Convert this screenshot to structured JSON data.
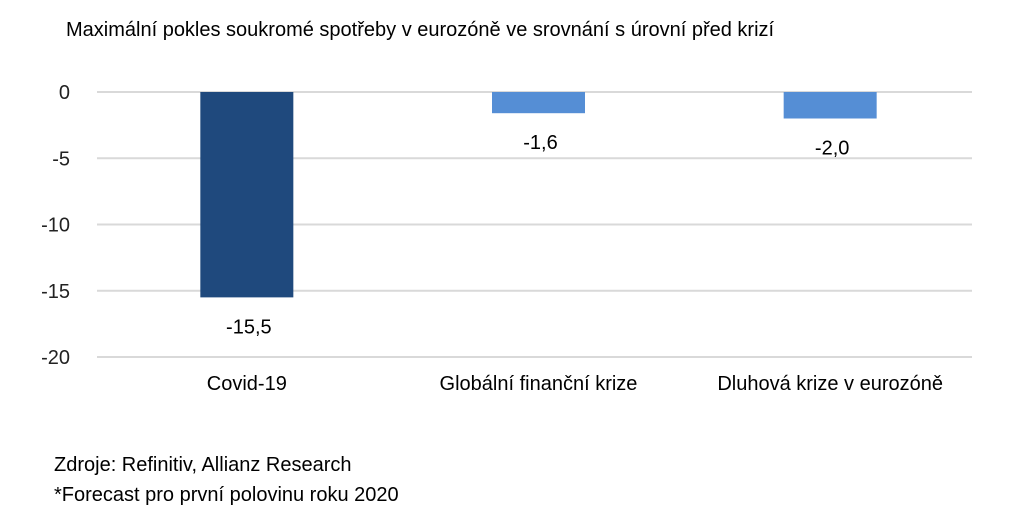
{
  "chart_data": {
    "type": "bar",
    "title": "Maximální pokles soukromé spotřeby v eurozóně ve srovnání s úrovní před krizí",
    "categories": [
      "Covid-19",
      "Globální finanční krize",
      "Dluhová krize v eurozóně"
    ],
    "values": [
      -15.5,
      -1.6,
      -2.0
    ],
    "data_labels": [
      "-15,5",
      "-1,6",
      "-2,0"
    ],
    "colors": [
      "#1f497d",
      "#558ed5",
      "#558ed5"
    ],
    "yticks": [
      0,
      -5,
      -10,
      -15,
      -20
    ],
    "ytick_labels": [
      "0",
      "-5",
      "-10",
      "-15",
      "-20"
    ],
    "ylim": [
      -20,
      0
    ],
    "grid": true,
    "xlabel": "",
    "ylabel": ""
  },
  "notes": {
    "source": "Zdroje: Refinitiv, Allianz Research",
    "footnote": "*Forecast pro první polovinu roku 2020"
  }
}
